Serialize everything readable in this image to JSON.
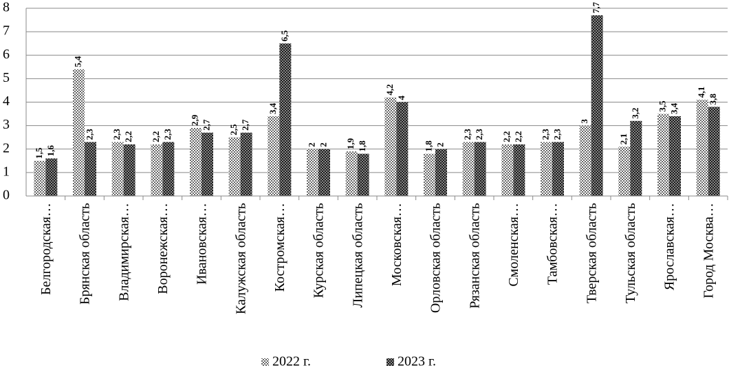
{
  "chart_data": {
    "type": "bar",
    "categories": [
      "Белгородская…",
      "Брянская область",
      "Владимирская…",
      "Воронежская…",
      "Ивановская…",
      "Калужская область",
      "Костромская…",
      "Курская область",
      "Липецкая область",
      "Московская…",
      "Орловская область",
      "Рязанская область",
      "Смоленская…",
      "Тамбовская…",
      "Тверская область",
      "Тульская область",
      "Ярославская…",
      "Город Москва…"
    ],
    "series": [
      {
        "name": "2022 г.",
        "color": "#666666",
        "values": [
          1.5,
          5.4,
          2.3,
          2.2,
          2.9,
          2.5,
          3.4,
          2,
          1.9,
          4.2,
          1.8,
          2.3,
          2.2,
          2.3,
          3,
          2.1,
          3.5,
          4.1
        ],
        "value_labels": [
          "1,5",
          "5,4",
          "2,3",
          "2,2",
          "2,9",
          "2,5",
          "3,4",
          "2",
          "1,9",
          "4,2",
          "1,8",
          "2,3",
          "2,2",
          "2,3",
          "3",
          "2,1",
          "3,5",
          "4,1"
        ]
      },
      {
        "name": "2023 г.",
        "color": "#1a1a1a",
        "values": [
          1.6,
          2.3,
          2.2,
          2.3,
          2.7,
          2.7,
          6.5,
          2,
          1.8,
          4,
          2,
          2.3,
          2.2,
          2.3,
          7.7,
          3.2,
          3.4,
          3.8
        ],
        "value_labels": [
          "1,6",
          "2,3",
          "2,2",
          "2,3",
          "2,7",
          "2,7",
          "6,5",
          "2",
          "1,8",
          "4",
          "2",
          "2,3",
          "2,2",
          "2,3",
          "7,7",
          "3,2",
          "3,4",
          "3,8"
        ]
      }
    ],
    "ylim": [
      0,
      8
    ],
    "yticks": [
      0,
      1,
      2,
      3,
      4,
      5,
      6,
      7,
      8
    ],
    "grid": true,
    "legend": "bottom"
  }
}
